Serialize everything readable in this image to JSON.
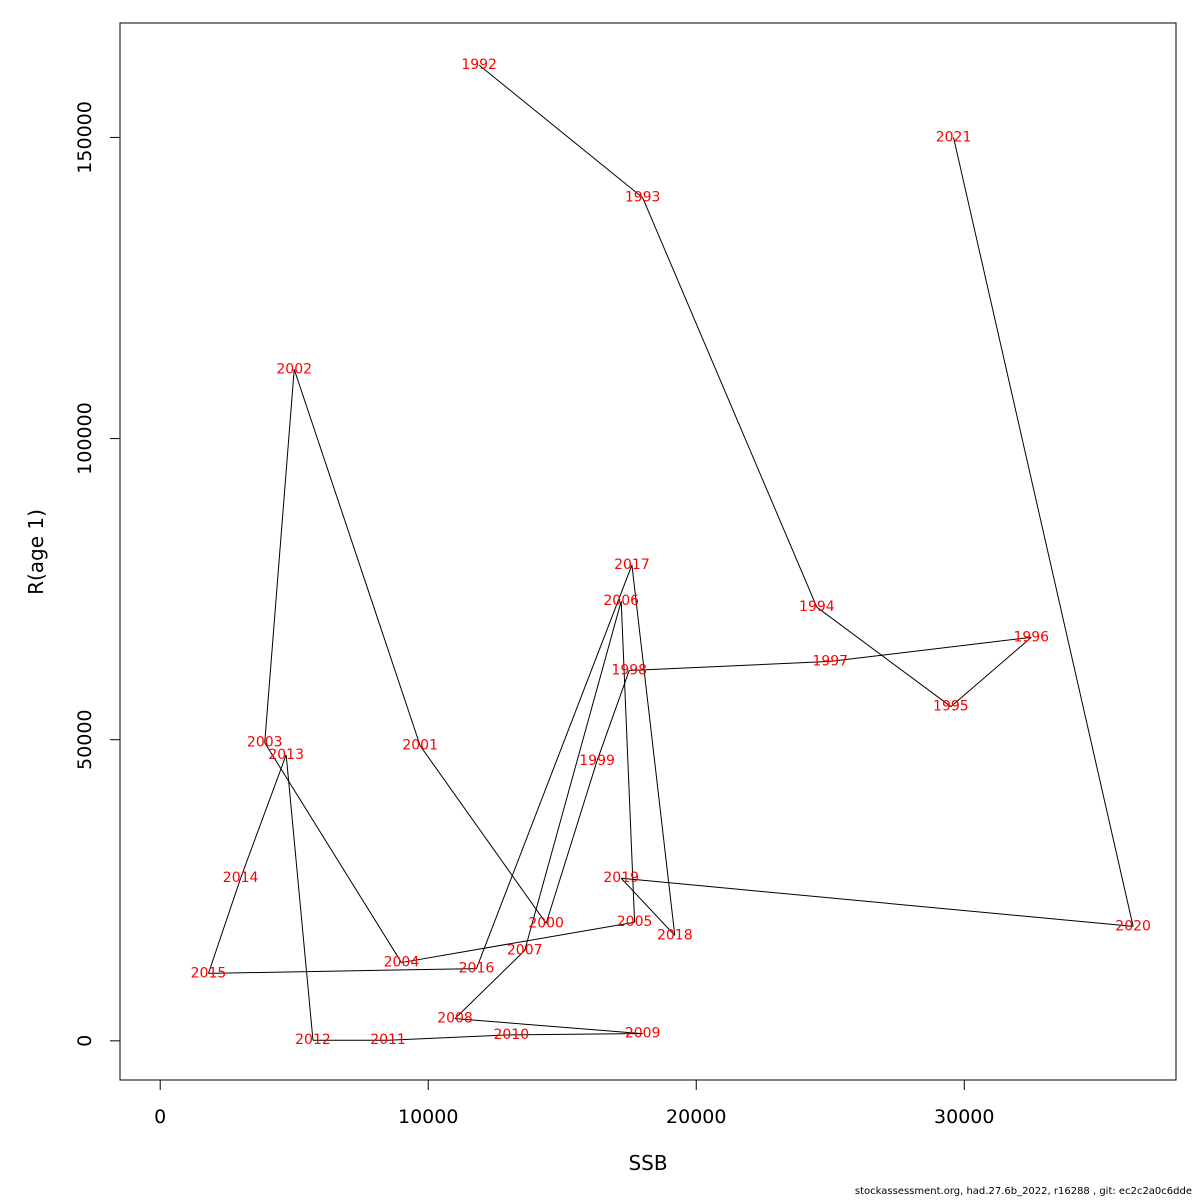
{
  "chart_data": {
    "type": "line",
    "title": "",
    "xlabel": "SSB",
    "ylabel": "R(age 1)",
    "xlim": [
      -1500,
      37900
    ],
    "ylim": [
      -6500,
      169000
    ],
    "xticks": [
      0,
      10000,
      20000,
      30000
    ],
    "yticks": [
      0,
      50000,
      100000,
      150000
    ],
    "grid": false,
    "colors": {
      "line": "#000000",
      "labels": "#ff0000",
      "frame": "#000000"
    },
    "points": [
      {
        "year": "1992",
        "x": 11900,
        "y": 162000
      },
      {
        "year": "1993",
        "x": 18000,
        "y": 140000
      },
      {
        "year": "1994",
        "x": 24500,
        "y": 72000
      },
      {
        "year": "1995",
        "x": 29500,
        "y": 55500
      },
      {
        "year": "1996",
        "x": 32500,
        "y": 67000
      },
      {
        "year": "1997",
        "x": 25000,
        "y": 63000
      },
      {
        "year": "1998",
        "x": 17500,
        "y": 61500
      },
      {
        "year": "1999",
        "x": 16300,
        "y": 46500
      },
      {
        "year": "2000",
        "x": 14400,
        "y": 19500
      },
      {
        "year": "2001",
        "x": 9700,
        "y": 49000
      },
      {
        "year": "2002",
        "x": 5000,
        "y": 111500
      },
      {
        "year": "2003",
        "x": 3900,
        "y": 49500
      },
      {
        "year": "2004",
        "x": 9000,
        "y": 13000
      },
      {
        "year": "2005",
        "x": 17700,
        "y": 19700
      },
      {
        "year": "2006",
        "x": 17200,
        "y": 73000
      },
      {
        "year": "2007",
        "x": 13600,
        "y": 15000
      },
      {
        "year": "2008",
        "x": 11000,
        "y": 3700
      },
      {
        "year": "2009",
        "x": 18000,
        "y": 1200
      },
      {
        "year": "2010",
        "x": 13100,
        "y": 1000
      },
      {
        "year": "2011",
        "x": 8500,
        "y": 100
      },
      {
        "year": "2012",
        "x": 5700,
        "y": 100
      },
      {
        "year": "2013",
        "x": 4700,
        "y": 47500
      },
      {
        "year": "2014",
        "x": 3000,
        "y": 27000
      },
      {
        "year": "2015",
        "x": 1800,
        "y": 11200
      },
      {
        "year": "2016",
        "x": 11800,
        "y": 12000
      },
      {
        "year": "2017",
        "x": 17600,
        "y": 79000
      },
      {
        "year": "2018",
        "x": 19200,
        "y": 17500
      },
      {
        "year": "2019",
        "x": 17200,
        "y": 27000
      },
      {
        "year": "2020",
        "x": 36300,
        "y": 19000
      },
      {
        "year": "2021",
        "x": 29600,
        "y": 150000
      }
    ]
  },
  "footer": "stockassessment.org, had.27.6b_2022, r16288 , git: ec2c2a0c6dde"
}
